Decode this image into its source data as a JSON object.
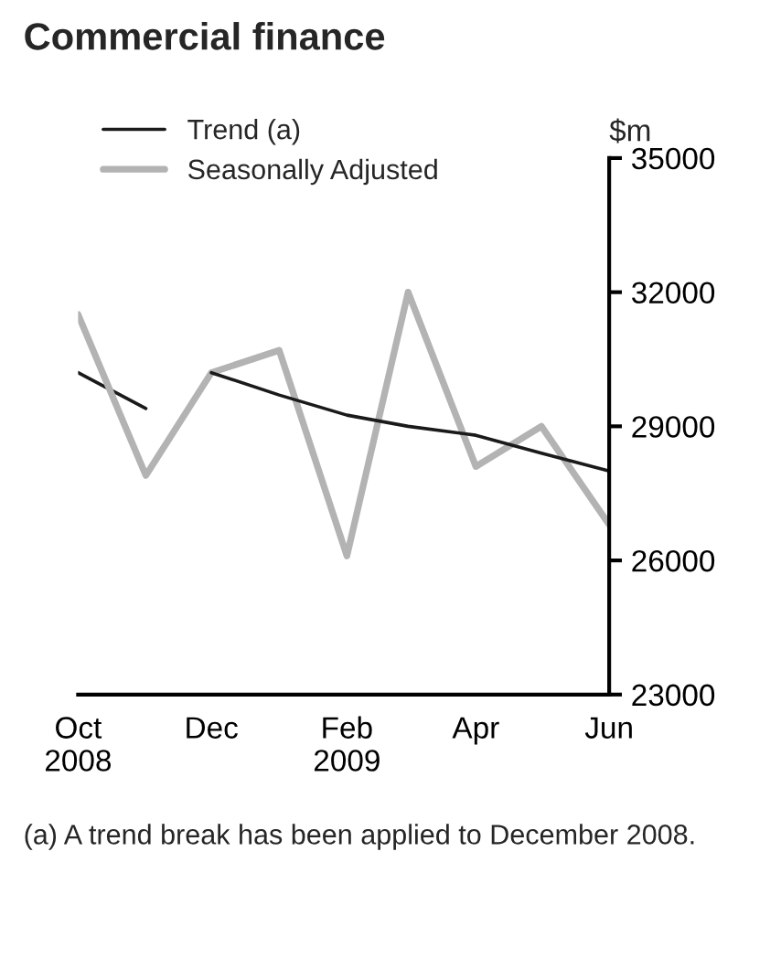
{
  "chart_data": {
    "type": "line",
    "title": "Commercial finance",
    "ylabel": "$m",
    "x": [
      "2008-10",
      "2008-11",
      "2008-12",
      "2009-01",
      "2009-02",
      "2009-03",
      "2009-04",
      "2009-05",
      "2009-06"
    ],
    "series": [
      {
        "name": "Trend (a)",
        "color": "#1a1a1a",
        "x": [
          "2008-10",
          "2008-11"
        ],
        "values": [
          30200,
          29400
        ]
      },
      {
        "name": "Seasonally Adjusted",
        "color": "#b3b3b3",
        "values": [
          31500,
          27900,
          30200,
          30700,
          26100,
          32000,
          28100,
          29000,
          26800
        ]
      },
      {
        "color": "#1a1a1a",
        "x": [
          "2008-12",
          "2009-01",
          "2009-02",
          "2009-03",
          "2009-04",
          "2009-05",
          "2009-06"
        ],
        "values": [
          30200,
          29700,
          29250,
          29000,
          28800,
          28400,
          28000
        ]
      }
    ],
    "xlim": [
      "2008-10",
      "2009-06"
    ],
    "xticks": [
      {
        "value": "2008-10",
        "label": "Oct\n2008"
      },
      {
        "value": "2008-12",
        "label": "Dec"
      },
      {
        "value": "2009-02",
        "label": "Feb\n2009"
      },
      {
        "value": "2009-04",
        "label": "Apr"
      },
      {
        "value": "2009-06",
        "label": "Jun"
      }
    ],
    "ylim": [
      23000,
      35000
    ],
    "yticks": [
      23000,
      26000,
      29000,
      32000,
      35000
    ],
    "legend": "top left",
    "grid": false,
    "annotations": [
      "(a) A trend break has been applied to December 2008."
    ]
  }
}
